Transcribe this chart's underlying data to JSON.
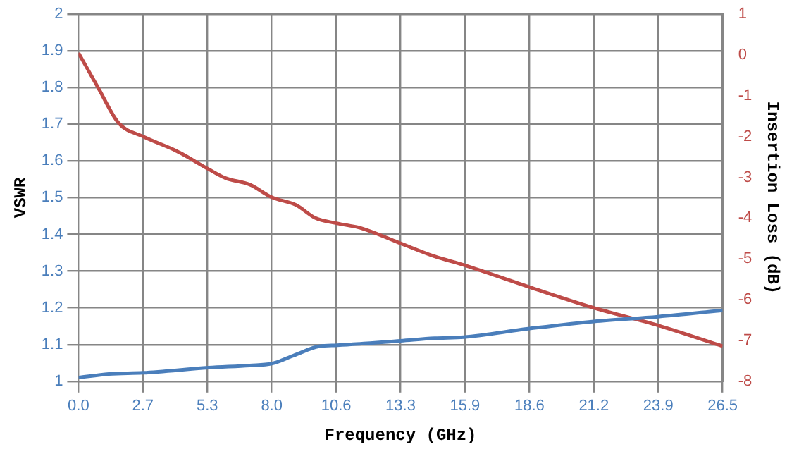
{
  "chart_data": {
    "type": "line",
    "xlabel": "Frequency (GHz)",
    "ylabel": "VSWR",
    "y2label": "Insertion Loss (dB)",
    "xlim": [
      0,
      26.5
    ],
    "xticks": [
      {
        "value": 0,
        "label": "0.0"
      },
      {
        "value": 2.65,
        "label": "2.7"
      },
      {
        "value": 5.3,
        "label": "5.3"
      },
      {
        "value": 7.95,
        "label": "8.0"
      },
      {
        "value": 10.6,
        "label": "10.6"
      },
      {
        "value": 13.25,
        "label": "13.3"
      },
      {
        "value": 15.9,
        "label": "15.9"
      },
      {
        "value": 18.55,
        "label": "18.6"
      },
      {
        "value": 21.2,
        "label": "21.2"
      },
      {
        "value": 23.85,
        "label": "23.9"
      },
      {
        "value": 26.5,
        "label": "26.5"
      }
    ],
    "ylim": [
      1,
      2
    ],
    "yticks": [
      1,
      1.1,
      1.2,
      1.3,
      1.4,
      1.5,
      1.6,
      1.7,
      1.8,
      1.9,
      2
    ],
    "y2lim": [
      -8,
      1
    ],
    "y2ticks": [
      -8,
      -7,
      -6,
      -5,
      -4,
      -3,
      -2,
      -1,
      0,
      1
    ],
    "grid": true,
    "legend": false,
    "marker": "none",
    "line_style": "solid",
    "series": [
      {
        "color": "#4a7ebb",
        "x": [
          0,
          1.25,
          2.65,
          5.35,
          7.05,
          7.95,
          8.85,
          9.9,
          10.65,
          13.25,
          14.65,
          15.85,
          18.5,
          21.2,
          23.85,
          26.5
        ],
        "values": [
          1.01,
          1.02,
          1.023,
          1.037,
          1.043,
          1.048,
          1.07,
          1.095,
          1.098,
          1.11,
          1.117,
          1.12,
          1.143,
          1.163,
          1.176,
          1.193
        ]
      },
      {
        "color": "#be4b48",
        "axis": "y2",
        "x": [
          0,
          0.85,
          1.65,
          2.65,
          4.05,
          5.35,
          6.05,
          7.05,
          7.95,
          8.95,
          9.75,
          10.65,
          11.65,
          13.05,
          14.65,
          15.85,
          18.5,
          21.2,
          23.85,
          26.5
        ],
        "values": [
          0.05,
          -0.85,
          -1.67,
          -2.0,
          -2.36,
          -2.8,
          -3.02,
          -3.18,
          -3.49,
          -3.68,
          -4.0,
          -4.13,
          -4.25,
          -4.57,
          -4.94,
          -5.15,
          -5.68,
          -6.2,
          -6.63,
          -7.14
        ]
      }
    ]
  }
}
